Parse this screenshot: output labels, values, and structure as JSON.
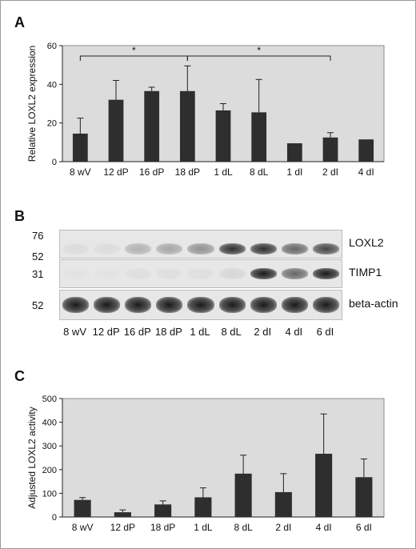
{
  "panels": {
    "a_letter": "A",
    "b_letter": "B",
    "c_letter": "C"
  },
  "chart_data": [
    {
      "type": "bar",
      "panel": "A",
      "ylabel": "Relative LOXL2 expression",
      "xlabel": "",
      "ylim": [
        0,
        60
      ],
      "yticks": [
        0,
        20,
        40,
        60
      ],
      "grid": false,
      "categories": [
        "8 wV",
        "12 dP",
        "16 dP",
        "18 dP",
        "1 dL",
        "8 dL",
        "1 dI",
        "2 dI",
        "4 dI"
      ],
      "values": [
        14.5,
        32,
        36.5,
        36.5,
        26.5,
        25.5,
        9.5,
        12.5,
        11.5
      ],
      "errors": [
        8,
        10,
        2,
        13,
        3.5,
        17,
        0,
        2.5,
        0
      ],
      "significance": [
        {
          "from": 0,
          "to": 3,
          "label": "*"
        },
        {
          "from": 3,
          "to": 7,
          "label": "*"
        }
      ],
      "colors": {
        "bar": "#2e2e2e",
        "plot_bg": "#dcdcdc"
      }
    },
    {
      "type": "bar",
      "panel": "C",
      "ylabel": "Adjusted LOXL2 activity",
      "xlabel": "",
      "ylim": [
        0,
        500
      ],
      "yticks": [
        0,
        100,
        200,
        300,
        400,
        500
      ],
      "grid": false,
      "categories": [
        "8 wV",
        "12 dP",
        "18 dP",
        "1 dL",
        "8 dL",
        "2 dI",
        "4 dI",
        "6 dI"
      ],
      "values": [
        72,
        20,
        53,
        83,
        183,
        105,
        267,
        168
      ],
      "errors": [
        10,
        10,
        15,
        40,
        78,
        78,
        168,
        77
      ],
      "colors": {
        "bar": "#2e2e2e",
        "plot_bg": "#dcdcdc"
      }
    }
  ],
  "blot": {
    "lanes": [
      "8 wV",
      "12 dP",
      "16 dP",
      "18 dP",
      "1 dL",
      "8 dL",
      "2 dI",
      "4 dI",
      "6 dI"
    ],
    "rows": [
      {
        "name": "LOXL2",
        "markers": [
          "76",
          "52"
        ],
        "intensity": [
          0.05,
          0.05,
          0.25,
          0.3,
          0.4,
          0.85,
          0.85,
          0.6,
          0.75
        ]
      },
      {
        "name": "TIMP1",
        "markers": [
          "31"
        ],
        "intensity": [
          0.02,
          0.02,
          0.04,
          0.04,
          0.04,
          0.08,
          0.95,
          0.6,
          0.95
        ]
      },
      {
        "name": "beta-actin",
        "markers": [
          "52"
        ],
        "intensity": [
          0.95,
          0.95,
          0.95,
          0.95,
          0.95,
          0.95,
          0.95,
          0.95,
          0.95
        ]
      }
    ]
  }
}
